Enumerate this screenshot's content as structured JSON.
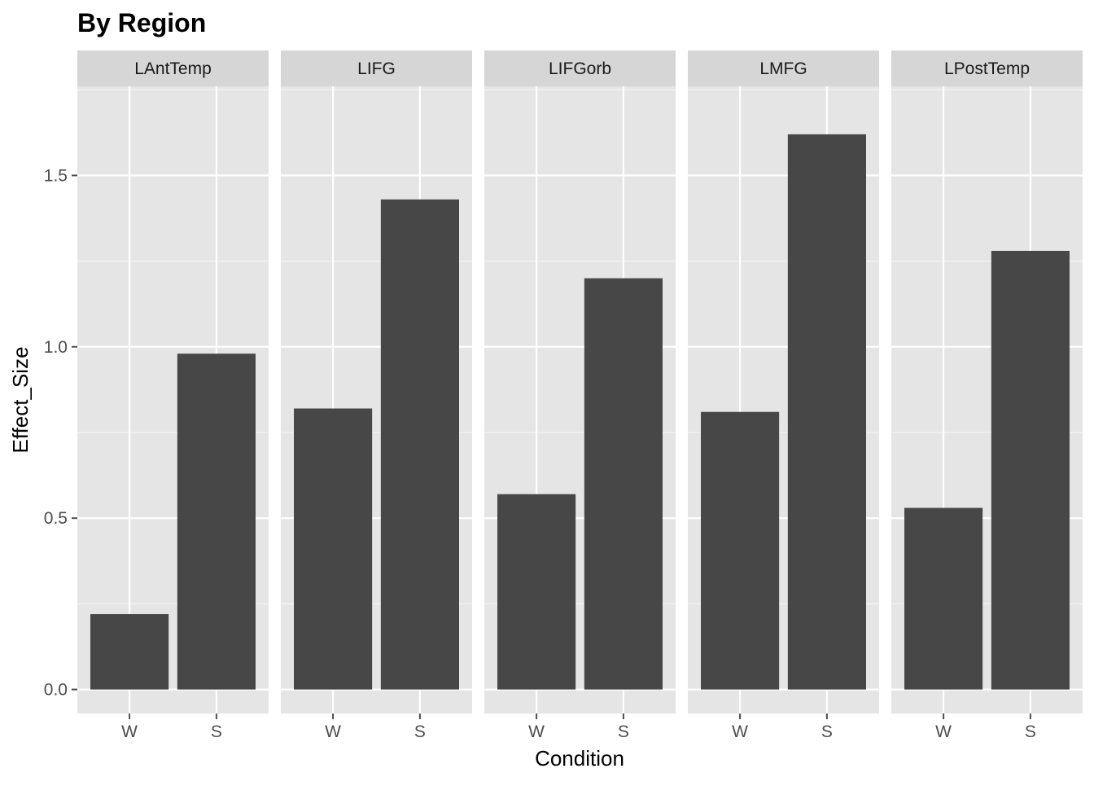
{
  "chart_data": {
    "type": "bar",
    "title": "By Region",
    "xlabel": "Condition",
    "ylabel": "Effect_Size",
    "ylim": [
      -0.07,
      1.76
    ],
    "y_ticks": [
      0.0,
      0.5,
      1.0,
      1.5
    ],
    "y_tick_labels": [
      "0.0",
      "0.5",
      "1.0",
      "1.5"
    ],
    "categories": [
      "W",
      "S"
    ],
    "grid": true,
    "facets": [
      {
        "label": "LAntTemp",
        "values": [
          0.22,
          0.98
        ]
      },
      {
        "label": "LIFG",
        "values": [
          0.82,
          1.43
        ]
      },
      {
        "label": "LIFGorb",
        "values": [
          0.57,
          1.2
        ]
      },
      {
        "label": "LMFG",
        "values": [
          0.81,
          1.62
        ]
      },
      {
        "label": "LPostTemp",
        "values": [
          0.53,
          1.28
        ]
      }
    ],
    "colors": {
      "bar": "#474747",
      "panel_bg": "#e5e5e5",
      "strip_bg": "#d6d6d6",
      "grid_major": "#ffffff",
      "axis_tick": "#4d4d4d"
    }
  }
}
